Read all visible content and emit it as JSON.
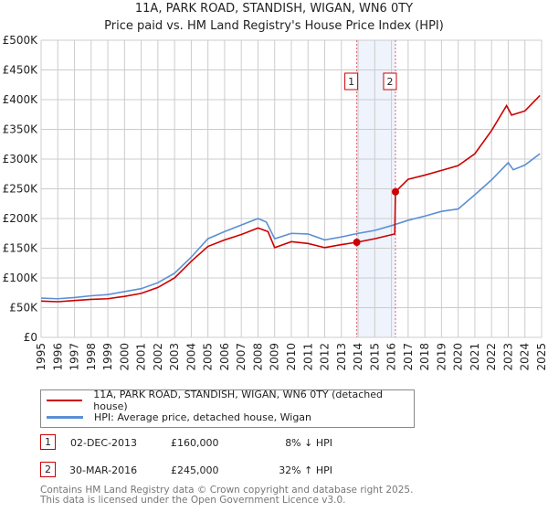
{
  "chart_data": {
    "type": "line",
    "title": "11A, PARK ROAD, STANDISH, WIGAN, WN6 0TY",
    "subtitle": "Price paid vs. HM Land Registry's House Price Index (HPI)",
    "xlim": [
      1995,
      2025
    ],
    "ylim": [
      0,
      500000
    ],
    "y_ticks": [
      0,
      50000,
      100000,
      150000,
      200000,
      250000,
      300000,
      350000,
      400000,
      450000,
      500000
    ],
    "y_tick_labels": [
      "£0",
      "£50K",
      "£100K",
      "£150K",
      "£200K",
      "£250K",
      "£300K",
      "£350K",
      "£400K",
      "£450K",
      "£500K"
    ],
    "x_ticks": [
      "1995",
      "1996",
      "1997",
      "1998",
      "1999",
      "2000",
      "2001",
      "2002",
      "2003",
      "2004",
      "2005",
      "2006",
      "2007",
      "2008",
      "2009",
      "2010",
      "2011",
      "2012",
      "2013",
      "2014",
      "2015",
      "2016",
      "2017",
      "2018",
      "2019",
      "2020",
      "2021",
      "2022",
      "2023",
      "2024",
      "2025"
    ],
    "grid": true,
    "shaded_range": [
      2013.92,
      2016.24
    ],
    "series": [
      {
        "name": "11A, PARK ROAD, STANDISH, WIGAN, WN6 0TY (detached house)",
        "color": "#cc0000",
        "points": [
          [
            1995,
            61000
          ],
          [
            1996,
            60000
          ],
          [
            1997,
            62000
          ],
          [
            1998,
            64000
          ],
          [
            1999,
            65000
          ],
          [
            2000,
            69000
          ],
          [
            2001,
            74000
          ],
          [
            2002,
            84000
          ],
          [
            2003,
            100000
          ],
          [
            2004,
            128000
          ],
          [
            2005,
            153000
          ],
          [
            2006,
            164000
          ],
          [
            2007,
            173000
          ],
          [
            2008,
            184000
          ],
          [
            2008.6,
            178000
          ],
          [
            2009,
            151000
          ],
          [
            2010,
            161000
          ],
          [
            2011,
            158000
          ],
          [
            2012,
            151000
          ],
          [
            2013,
            156000
          ],
          [
            2013.92,
            160000
          ],
          [
            2015,
            166000
          ],
          [
            2016.2,
            174000
          ],
          [
            2016.24,
            245000
          ],
          [
            2017,
            266000
          ],
          [
            2018,
            273000
          ],
          [
            2019,
            281000
          ],
          [
            2020,
            289000
          ],
          [
            2021,
            309000
          ],
          [
            2022,
            348000
          ],
          [
            2022.9,
            390000
          ],
          [
            2023.2,
            374000
          ],
          [
            2024,
            381000
          ],
          [
            2024.9,
            407000
          ]
        ]
      },
      {
        "name": "HPI: Average price, detached house, Wigan",
        "color": "#5b8fd4",
        "points": [
          [
            1995,
            66000
          ],
          [
            1996,
            65000
          ],
          [
            1997,
            67000
          ],
          [
            1998,
            70000
          ],
          [
            1999,
            72000
          ],
          [
            2000,
            77000
          ],
          [
            2001,
            82000
          ],
          [
            2002,
            92000
          ],
          [
            2003,
            108000
          ],
          [
            2004,
            135000
          ],
          [
            2005,
            166000
          ],
          [
            2006,
            178000
          ],
          [
            2007,
            189000
          ],
          [
            2008,
            200000
          ],
          [
            2008.5,
            194000
          ],
          [
            2009,
            166000
          ],
          [
            2010,
            175000
          ],
          [
            2011,
            174000
          ],
          [
            2012,
            164000
          ],
          [
            2013,
            169000
          ],
          [
            2014,
            175000
          ],
          [
            2015,
            180000
          ],
          [
            2016,
            188000
          ],
          [
            2017,
            197000
          ],
          [
            2018,
            204000
          ],
          [
            2019,
            212000
          ],
          [
            2020,
            216000
          ],
          [
            2021,
            240000
          ],
          [
            2022,
            265000
          ],
          [
            2023,
            294000
          ],
          [
            2023.3,
            282000
          ],
          [
            2024,
            290000
          ],
          [
            2024.9,
            309000
          ]
        ]
      }
    ],
    "markers": [
      {
        "label": "1",
        "x": 2013.92,
        "y": 160000
      },
      {
        "label": "2",
        "x": 2016.24,
        "y": 245000
      }
    ]
  },
  "legend": [
    "11A, PARK ROAD, STANDISH, WIGAN, WN6 0TY (detached house)",
    "HPI: Average price, detached house, Wigan"
  ],
  "transactions": [
    {
      "num": "1",
      "date": "02-DEC-2013",
      "price": "£160,000",
      "hpi": "8% ↓ HPI"
    },
    {
      "num": "2",
      "date": "30-MAR-2016",
      "price": "£245,000",
      "hpi": "32% ↑ HPI"
    }
  ],
  "footer": [
    "Contains HM Land Registry data © Crown copyright and database right 2025.",
    "This data is licensed under the Open Government Licence v3.0."
  ]
}
